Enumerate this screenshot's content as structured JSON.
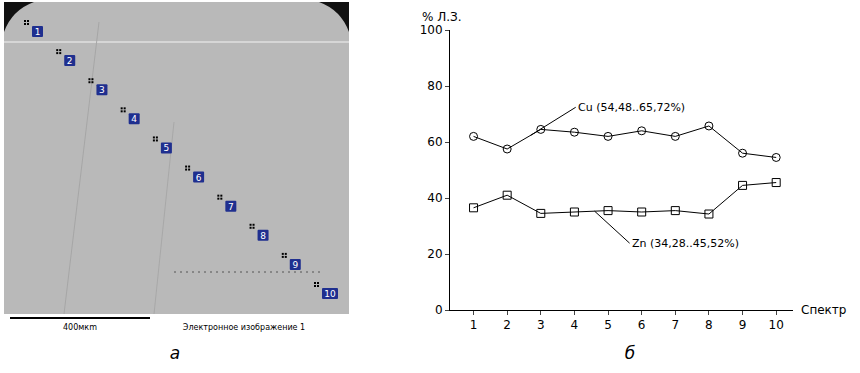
{
  "chart_data": {
    "type": "line",
    "x_label": "Спектр",
    "y_label": "% Л.З.",
    "x": [
      1,
      2,
      3,
      4,
      5,
      6,
      7,
      8,
      9,
      10
    ],
    "xlim": [
      0.3,
      10.5
    ],
    "xticks": [
      1,
      2,
      3,
      4,
      5,
      6,
      7,
      8,
      9,
      10
    ],
    "ylim": [
      0,
      100
    ],
    "yticks": [
      0,
      20,
      40,
      60,
      80,
      100
    ],
    "grid": false,
    "series": [
      {
        "name": "Cu",
        "color": "#000000",
        "marker": "circle-open",
        "values": [
          62,
          57.5,
          64.5,
          63.5,
          62,
          64,
          62,
          65.72,
          56,
          54.48
        ]
      },
      {
        "name": "Zn",
        "color": "#000000",
        "marker": "square-open",
        "values": [
          36.5,
          41,
          34.5,
          35,
          35.5,
          35,
          35.5,
          34.28,
          44.5,
          45.52
        ]
      }
    ],
    "annotations": [
      {
        "text": "Cu (54,48..65,72%)",
        "x": 2.7,
        "y": 62.4
      },
      {
        "text": "Zn (34,28..45,52%)",
        "x": 4.6,
        "y": 35.3
      }
    ]
  },
  "image": {
    "markers": [
      "1",
      "2",
      "3",
      "4",
      "5",
      "6",
      "7",
      "8",
      "9",
      "10"
    ],
    "scale_bar": "400мкm",
    "caption": "Электронное изображение 1"
  },
  "panels": {
    "a": "а",
    "b": "б"
  }
}
